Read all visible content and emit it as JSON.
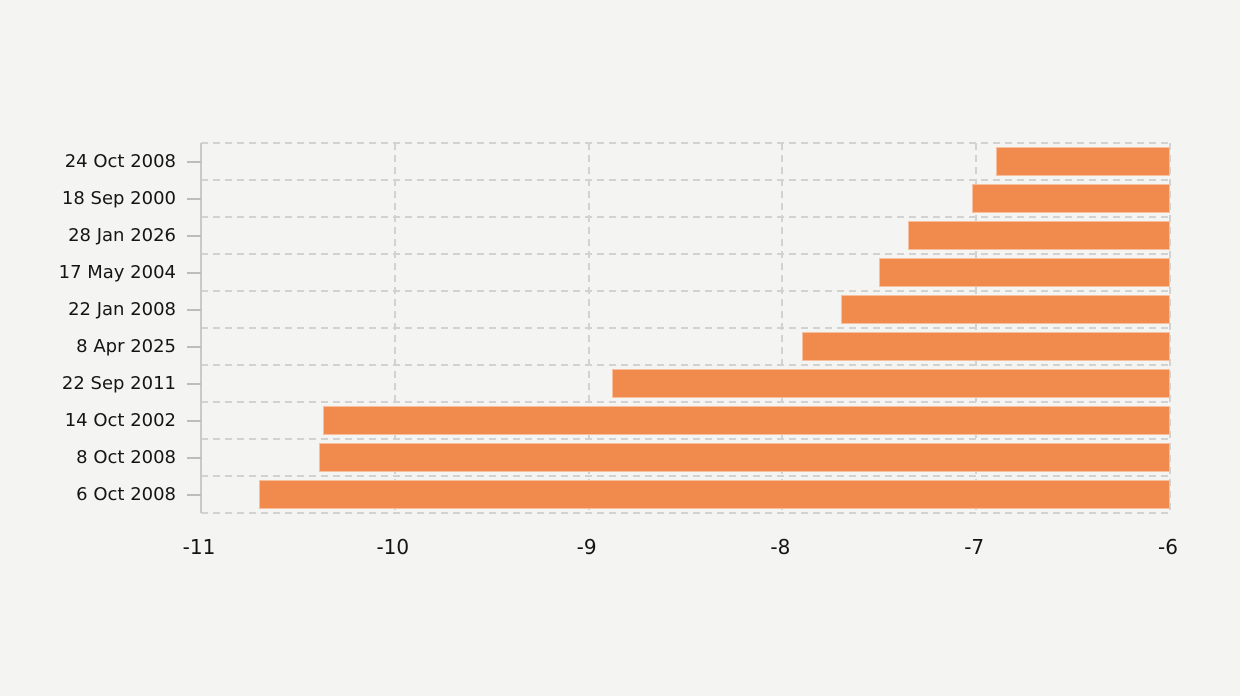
{
  "chart_data": {
    "type": "bar",
    "orientation": "horizontal",
    "categories": [
      "24 Oct 2008",
      "18 Sep 2000",
      "28 Jan 2026",
      "17 May 2004",
      "22 Jan 2008",
      "8 Apr 2025",
      "22 Sep 2011",
      "14 Oct 2002",
      "8 Oct 2008",
      "6 Oct 2008"
    ],
    "values": [
      -6.9,
      -7.02,
      -7.35,
      -7.5,
      -7.7,
      -7.9,
      -8.88,
      -10.37,
      -10.39,
      -10.7
    ],
    "bar_anchor": -6,
    "xlim": [
      -11,
      -6
    ],
    "x_ticks": [
      -11,
      -10,
      -9,
      -8,
      -7,
      -6
    ],
    "x_tick_labels": [
      "-11",
      "-10",
      "-9",
      "-8",
      "-7",
      "-6"
    ],
    "grid": "dashed",
    "legend": "none",
    "colors": {
      "background": "#f4f4f3",
      "bar": "#f18b4d",
      "gridline": "#d2d2d0",
      "axis_line": "#c9c9c7",
      "tick_mark": "#bdbdbb",
      "text": "#141414"
    }
  }
}
